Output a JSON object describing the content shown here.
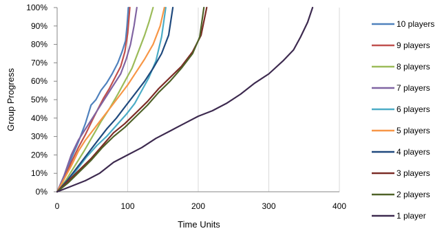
{
  "chart_data": {
    "type": "line",
    "title": "",
    "xlabel": "Time Units",
    "ylabel": "Group Progress",
    "xlim": [
      0,
      400
    ],
    "ylim": [
      0,
      100
    ],
    "x_ticks": [
      "0",
      "100",
      "200",
      "300",
      "400"
    ],
    "y_ticks": [
      "0%",
      "10%",
      "20%",
      "30%",
      "40%",
      "50%",
      "60%",
      "70%",
      "80%",
      "90%",
      "100%"
    ],
    "grid": "vertical",
    "legend_position": "right",
    "series": [
      {
        "name": "10 players",
        "color": "#4f81bd",
        "points": [
          [
            0,
            0
          ],
          [
            10,
            8
          ],
          [
            20,
            18
          ],
          [
            30,
            27
          ],
          [
            40,
            37
          ],
          [
            48,
            47
          ],
          [
            55,
            50
          ],
          [
            62,
            55
          ],
          [
            70,
            59
          ],
          [
            78,
            64
          ],
          [
            86,
            70
          ],
          [
            92,
            76
          ],
          [
            97,
            82
          ],
          [
            99,
            90
          ],
          [
            101,
            100
          ]
        ]
      },
      {
        "name": "9 players",
        "color": "#c0504d",
        "points": [
          [
            0,
            0
          ],
          [
            10,
            7
          ],
          [
            20,
            16
          ],
          [
            30,
            24
          ],
          [
            40,
            31
          ],
          [
            50,
            39
          ],
          [
            58,
            45
          ],
          [
            66,
            51
          ],
          [
            74,
            56
          ],
          [
            82,
            62
          ],
          [
            90,
            68
          ],
          [
            96,
            76
          ],
          [
            100,
            86
          ],
          [
            103,
            100
          ]
        ]
      },
      {
        "name": "8 players",
        "color": "#9bbb59",
        "points": [
          [
            0,
            0
          ],
          [
            12,
            6
          ],
          [
            25,
            14
          ],
          [
            38,
            22
          ],
          [
            50,
            30
          ],
          [
            62,
            38
          ],
          [
            74,
            45
          ],
          [
            86,
            53
          ],
          [
            96,
            60
          ],
          [
            106,
            67
          ],
          [
            115,
            76
          ],
          [
            124,
            85
          ],
          [
            130,
            92
          ],
          [
            136,
            100
          ]
        ]
      },
      {
        "name": "7 players",
        "color": "#8064a2",
        "points": [
          [
            0,
            0
          ],
          [
            10,
            9
          ],
          [
            20,
            20
          ],
          [
            30,
            28
          ],
          [
            40,
            34
          ],
          [
            50,
            40
          ],
          [
            60,
            46
          ],
          [
            70,
            52
          ],
          [
            80,
            58
          ],
          [
            90,
            64
          ],
          [
            98,
            72
          ],
          [
            104,
            80
          ],
          [
            109,
            90
          ],
          [
            113,
            100
          ]
        ]
      },
      {
        "name": "6 players",
        "color": "#4bacc6",
        "points": [
          [
            0,
            0
          ],
          [
            14,
            5
          ],
          [
            28,
            12
          ],
          [
            42,
            19
          ],
          [
            56,
            25
          ],
          [
            70,
            30
          ],
          [
            84,
            36
          ],
          [
            98,
            42
          ],
          [
            110,
            48
          ],
          [
            120,
            55
          ],
          [
            130,
            62
          ],
          [
            140,
            71
          ],
          [
            148,
            84
          ],
          [
            154,
            100
          ]
        ]
      },
      {
        "name": "5 players",
        "color": "#f79646",
        "points": [
          [
            0,
            0
          ],
          [
            10,
            7
          ],
          [
            20,
            14
          ],
          [
            30,
            22
          ],
          [
            40,
            28
          ],
          [
            50,
            33
          ],
          [
            60,
            38
          ],
          [
            70,
            43
          ],
          [
            80,
            48
          ],
          [
            90,
            53
          ],
          [
            100,
            58
          ],
          [
            112,
            65
          ],
          [
            124,
            72
          ],
          [
            136,
            80
          ],
          [
            146,
            90
          ],
          [
            152,
            100
          ]
        ]
      },
      {
        "name": "4 players",
        "color": "#1f497d",
        "points": [
          [
            0,
            0
          ],
          [
            14,
            6
          ],
          [
            28,
            13
          ],
          [
            42,
            20
          ],
          [
            56,
            27
          ],
          [
            70,
            34
          ],
          [
            84,
            40
          ],
          [
            98,
            47
          ],
          [
            112,
            54
          ],
          [
            124,
            60
          ],
          [
            136,
            67
          ],
          [
            148,
            75
          ],
          [
            158,
            85
          ],
          [
            164,
            100
          ]
        ]
      },
      {
        "name": "3 players",
        "color": "#7b2c26",
        "points": [
          [
            0,
            0
          ],
          [
            16,
            6
          ],
          [
            32,
            12
          ],
          [
            48,
            18
          ],
          [
            64,
            25
          ],
          [
            80,
            32
          ],
          [
            96,
            37
          ],
          [
            112,
            43
          ],
          [
            128,
            49
          ],
          [
            144,
            56
          ],
          [
            160,
            62
          ],
          [
            176,
            68
          ],
          [
            192,
            76
          ],
          [
            204,
            85
          ],
          [
            212,
            100
          ]
        ]
      },
      {
        "name": "2 players",
        "color": "#4f6228",
        "points": [
          [
            0,
            0
          ],
          [
            16,
            5
          ],
          [
            32,
            11
          ],
          [
            48,
            17
          ],
          [
            64,
            24
          ],
          [
            80,
            30
          ],
          [
            96,
            35
          ],
          [
            112,
            41
          ],
          [
            128,
            47
          ],
          [
            144,
            54
          ],
          [
            160,
            60
          ],
          [
            176,
            67
          ],
          [
            192,
            75
          ],
          [
            202,
            84
          ],
          [
            208,
            100
          ]
        ]
      },
      {
        "name": "1 player",
        "color": "#3d2a4f",
        "points": [
          [
            0,
            0
          ],
          [
            20,
            3
          ],
          [
            40,
            6
          ],
          [
            60,
            10
          ],
          [
            80,
            16
          ],
          [
            100,
            20
          ],
          [
            120,
            24
          ],
          [
            140,
            29
          ],
          [
            160,
            33
          ],
          [
            180,
            37
          ],
          [
            200,
            41
          ],
          [
            220,
            44
          ],
          [
            240,
            48
          ],
          [
            260,
            53
          ],
          [
            280,
            59
          ],
          [
            300,
            64
          ],
          [
            320,
            71
          ],
          [
            335,
            77
          ],
          [
            345,
            84
          ],
          [
            355,
            92
          ],
          [
            362,
            100
          ]
        ]
      }
    ]
  }
}
